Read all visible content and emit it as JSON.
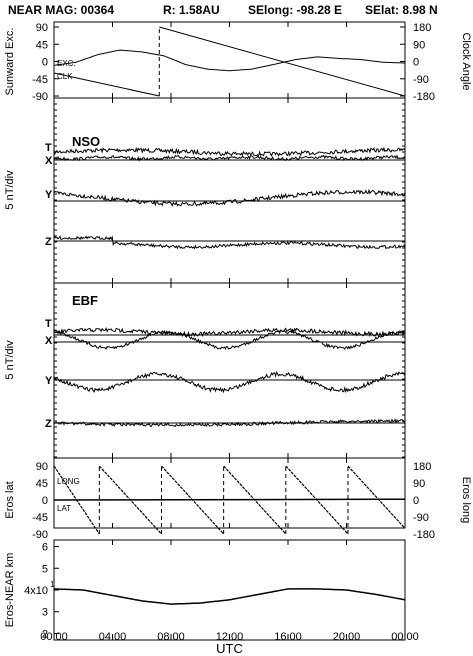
{
  "header": {
    "title": "NEAR MAG: 00364",
    "radius": "R: 1.58AU",
    "selong": "SElong: -98.28 E",
    "selat": "SElat: 8.98 N"
  },
  "chart_data": [
    {
      "type": "line",
      "panel": "angles",
      "ylabel_left": "Sunward Exc.",
      "ylabel_right": "Clock Angle",
      "left_ticks": [
        "90",
        "45",
        "0",
        "-45",
        "-90"
      ],
      "right_ticks": [
        "180",
        "90",
        "0",
        "-90",
        "-180"
      ],
      "ylim_left": [
        -90,
        90
      ],
      "ylim_right": [
        -180,
        180
      ],
      "inline_labels": [
        "EXC.",
        "CLK"
      ],
      "series": [
        {
          "name": "EXC.",
          "x_hours": [
            0,
            1.5,
            3,
            4.5,
            6,
            7.5,
            9,
            10.5,
            12,
            13.5,
            15,
            16.5,
            18,
            19.5,
            21,
            22.5,
            24
          ],
          "values": [
            -10,
            -2,
            18,
            30,
            25,
            15,
            -8,
            -20,
            -24,
            -20,
            -8,
            5,
            12,
            8,
            5,
            -2,
            -4
          ]
        },
        {
          "name": "CLK",
          "segments": [
            {
              "x_hours": [
                0,
                7.2
              ],
              "values": [
                -60,
                -180
              ]
            },
            {
              "x_hours": [
                7.2,
                24
              ],
              "values": [
                180,
                -180
              ]
            }
          ]
        }
      ]
    },
    {
      "type": "line",
      "panel": "NSO",
      "panel_label": "NSO",
      "ylabel": "5 nT/div",
      "components": [
        "T",
        "X",
        "Y",
        "Z"
      ]
    },
    {
      "type": "line",
      "panel": "EBF",
      "panel_label": "EBF",
      "ylabel": "5 nT/div",
      "components": [
        "T",
        "X",
        "Y",
        "Z"
      ]
    },
    {
      "type": "line",
      "panel": "eros",
      "ylabel_left": "Eros lat",
      "ylabel_right": "Eros long",
      "left_ticks": [
        "90",
        "45",
        "0",
        "-45",
        "-90"
      ],
      "right_ticks": [
        "180",
        "90",
        "0",
        "-90",
        "-180"
      ],
      "ylim_left": [
        -90,
        90
      ],
      "ylim_right": [
        -180,
        180
      ],
      "inline_labels": [
        "LONG",
        "LAT"
      ],
      "lat_values": [
        0,
        2
      ],
      "long_period_hours": 4.25,
      "long_start_value": 180
    },
    {
      "type": "line",
      "panel": "distance",
      "ylabel": "Eros-NEAR km",
      "yticks": [
        "6",
        "5",
        "4x10",
        "3",
        "2"
      ],
      "tick_exponent": "1",
      "x_hours": [
        0,
        2,
        4,
        6,
        8,
        10,
        12,
        14,
        16,
        18,
        20,
        22,
        24
      ],
      "values": [
        4.05,
        4.0,
        3.75,
        3.5,
        3.35,
        3.4,
        3.55,
        3.8,
        4.05,
        4.05,
        4.0,
        3.8,
        3.55
      ]
    }
  ],
  "x_axis": {
    "label": "UTC",
    "ticks": [
      "00:00",
      "04:00",
      "08:00",
      "12:00",
      "16:00",
      "20:00",
      "00:00"
    ]
  }
}
